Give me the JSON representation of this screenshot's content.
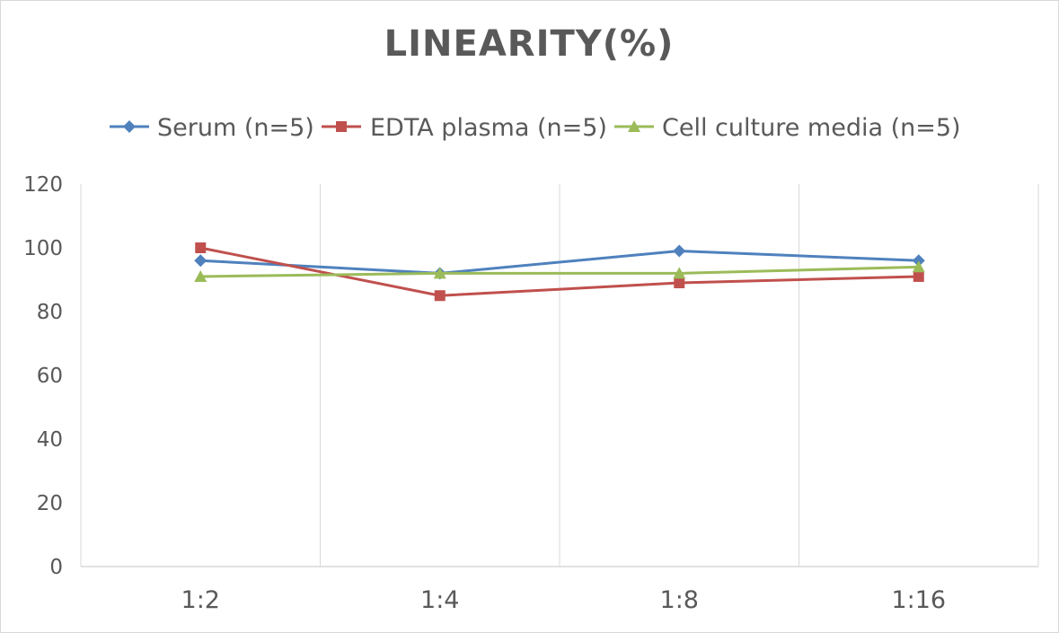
{
  "chart_data": {
    "type": "line",
    "title": "LINEARITY(%)",
    "xlabel": "",
    "ylabel": "",
    "categories": [
      "1:2",
      "1:4",
      "1:8",
      "1:16"
    ],
    "ylim": [
      0,
      120
    ],
    "yticks": [
      0,
      20,
      40,
      60,
      80,
      100,
      120
    ],
    "grid": "vertical",
    "legend": "top",
    "series": [
      {
        "name": "Serum (n=5)",
        "values": [
          96,
          92,
          99,
          96
        ],
        "color": "#4f81bd",
        "marker": "diamond"
      },
      {
        "name": "EDTA plasma (n=5)",
        "values": [
          100,
          85,
          89,
          91
        ],
        "color": "#c0504d",
        "marker": "square"
      },
      {
        "name": "Cell culture media (n=5)",
        "values": [
          91,
          92,
          92,
          94
        ],
        "color": "#9bbb59",
        "marker": "triangle"
      }
    ]
  }
}
